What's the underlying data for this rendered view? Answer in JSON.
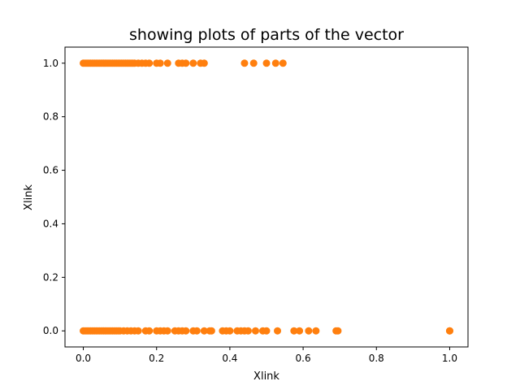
{
  "chart_data": {
    "type": "scatter",
    "title": "showing plots of parts of the vector",
    "xlabel": "Xlink",
    "ylabel": "Xlink",
    "xlim": [
      -0.05,
      1.05
    ],
    "ylim": [
      -0.06,
      1.06
    ],
    "xticks": [
      "0.0",
      "0.2",
      "0.4",
      "0.6",
      "0.8",
      "1.0"
    ],
    "yticks": [
      "0.0",
      "0.2",
      "0.4",
      "0.6",
      "0.8",
      "1.0"
    ],
    "grid": false,
    "legend": "none",
    "marker_color": "#ff7f0e",
    "series": [
      {
        "x": [
          0.0,
          0.005,
          0.01,
          0.015,
          0.02,
          0.025,
          0.03,
          0.035,
          0.04,
          0.045,
          0.05,
          0.055,
          0.06,
          0.065,
          0.07,
          0.075,
          0.08,
          0.085,
          0.09,
          0.095,
          0.1,
          0.105,
          0.11,
          0.115,
          0.12,
          0.125,
          0.13,
          0.135,
          0.14,
          0.15,
          0.16,
          0.17,
          0.18,
          0.2,
          0.21,
          0.23,
          0.26,
          0.27,
          0.28,
          0.3,
          0.32,
          0.33,
          0.44,
          0.465,
          0.5,
          0.525,
          0.545,
          0.0,
          0.005,
          0.01,
          0.015,
          0.02,
          0.025,
          0.03,
          0.035,
          0.04,
          0.045,
          0.05,
          0.055,
          0.06,
          0.065,
          0.07,
          0.075,
          0.08,
          0.085,
          0.09,
          0.095,
          0.1,
          0.11,
          0.12,
          0.13,
          0.14,
          0.15,
          0.17,
          0.18,
          0.2,
          0.21,
          0.22,
          0.23,
          0.25,
          0.26,
          0.27,
          0.28,
          0.3,
          0.31,
          0.33,
          0.345,
          0.35,
          0.38,
          0.39,
          0.4,
          0.42,
          0.43,
          0.44,
          0.45,
          0.47,
          0.49,
          0.5,
          0.53,
          0.575,
          0.59,
          0.615,
          0.635,
          0.69,
          0.695,
          1.0,
          1.0
        ],
        "y": [
          1,
          1,
          1,
          1,
          1,
          1,
          1,
          1,
          1,
          1,
          1,
          1,
          1,
          1,
          1,
          1,
          1,
          1,
          1,
          1,
          1,
          1,
          1,
          1,
          1,
          1,
          1,
          1,
          1,
          1,
          1,
          1,
          1,
          1,
          1,
          1,
          1,
          1,
          1,
          1,
          1,
          1,
          1,
          1,
          1,
          1,
          1,
          0,
          0,
          0,
          0,
          0,
          0,
          0,
          0,
          0,
          0,
          0,
          0,
          0,
          0,
          0,
          0,
          0,
          0,
          0,
          0,
          0,
          0,
          0,
          0,
          0,
          0,
          0,
          0,
          0,
          0,
          0,
          0,
          0,
          0,
          0,
          0,
          0,
          0,
          0,
          0,
          0,
          0,
          0,
          0,
          0,
          0,
          0,
          0,
          0,
          0,
          0,
          0,
          0,
          0,
          0,
          0,
          0,
          0,
          0,
          0
        ]
      }
    ]
  }
}
